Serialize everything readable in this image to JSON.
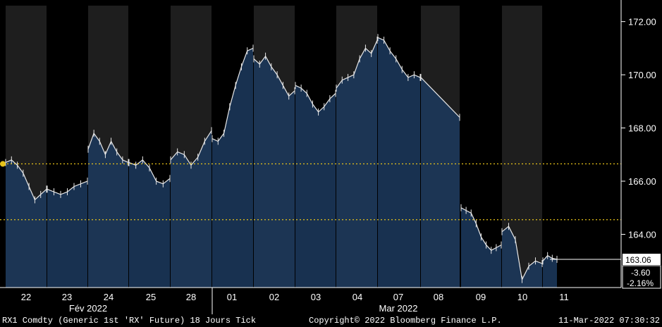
{
  "colors": {
    "background": "#000000",
    "session_dark": "#1e1e1e",
    "area_fill": "#0f2a4a",
    "area_fill_light": "#1c3a5e",
    "line": "#e8e8e8",
    "reference_line": "#e6c21a",
    "axis": "#ffffff"
  },
  "y_axis_ticks": [
    "172.00",
    "170.00",
    "168.00",
    "166.00",
    "164.00"
  ],
  "value_box": {
    "last": "163.06",
    "change": "-3.60",
    "change_pct": "-2.16%"
  },
  "date_ticks": [
    "22",
    "23",
    "24",
    "25",
    "28",
    "01",
    "02",
    "03",
    "04",
    "07",
    "08",
    "09",
    "10",
    "11"
  ],
  "months": [
    "Fév 2022",
    "Mar 2022"
  ],
  "footer": {
    "security": "RX1 Comdty (Generic 1st 'RX' Future) 18 Jours  Tick",
    "copyright": "Copyright© 2022 Bloomberg Finance L.P.",
    "timestamp": "11-Mar-2022 07:30:32"
  },
  "chart_data": {
    "type": "area",
    "y_axis_side": "right",
    "ylim": [
      162.0,
      172.6
    ],
    "ticks": [
      172,
      170,
      168,
      166,
      164
    ],
    "reference_lines": [
      166.65,
      164.55
    ],
    "last_value": 163.06,
    "categories": [
      "22",
      "23",
      "24",
      "25",
      "28",
      "01",
      "02",
      "03",
      "04",
      "07",
      "08",
      "09",
      "10",
      "11"
    ],
    "sessions": [
      {
        "day": "22",
        "values": [
          166.7,
          166.8,
          166.6,
          166.3,
          165.8,
          165.3,
          165.5,
          165.7
        ]
      },
      {
        "day": "23",
        "values": [
          165.7,
          165.6,
          165.5,
          165.6,
          165.8,
          165.9,
          166.0
        ]
      },
      {
        "day": "24",
        "values": [
          167.2,
          167.8,
          167.5,
          167.0,
          167.5,
          167.1,
          166.8,
          166.7
        ]
      },
      {
        "day": "25",
        "values": [
          166.7,
          166.6,
          166.8,
          166.5,
          166.0,
          165.9,
          166.1
        ]
      },
      {
        "day": "28",
        "values": [
          166.8,
          167.1,
          167.0,
          166.6,
          166.9,
          167.5,
          167.9
        ]
      },
      {
        "day": "01",
        "values": [
          167.6,
          167.5,
          167.8,
          168.8,
          169.6,
          170.3,
          170.9,
          171.0
        ]
      },
      {
        "day": "02",
        "values": [
          170.6,
          170.4,
          170.7,
          170.3,
          170.0,
          169.6,
          169.2,
          169.4
        ]
      },
      {
        "day": "03",
        "values": [
          169.6,
          169.5,
          169.3,
          168.9,
          168.6,
          168.8,
          169.1,
          169.3
        ]
      },
      {
        "day": "04",
        "values": [
          169.5,
          169.8,
          169.9,
          170.0,
          170.6,
          171.0,
          170.8,
          171.3
        ]
      },
      {
        "day": "07",
        "values": [
          171.4,
          171.3,
          170.9,
          170.6,
          170.2,
          169.9,
          170.0,
          169.9
        ]
      },
      {
        "day": "08",
        "values": [
          169.9,
          168.4
        ]
      },
      {
        "day": "09",
        "values": [
          165.0,
          164.9,
          164.8,
          164.4,
          163.9,
          163.6,
          163.4,
          163.5,
          163.6
        ]
      },
      {
        "day": "10",
        "values": [
          164.1,
          164.3,
          163.8,
          162.3,
          162.8,
          163.0,
          162.9
        ]
      },
      {
        "day": "11",
        "values": [
          163.0,
          163.2,
          163.1,
          163.06
        ]
      }
    ]
  }
}
